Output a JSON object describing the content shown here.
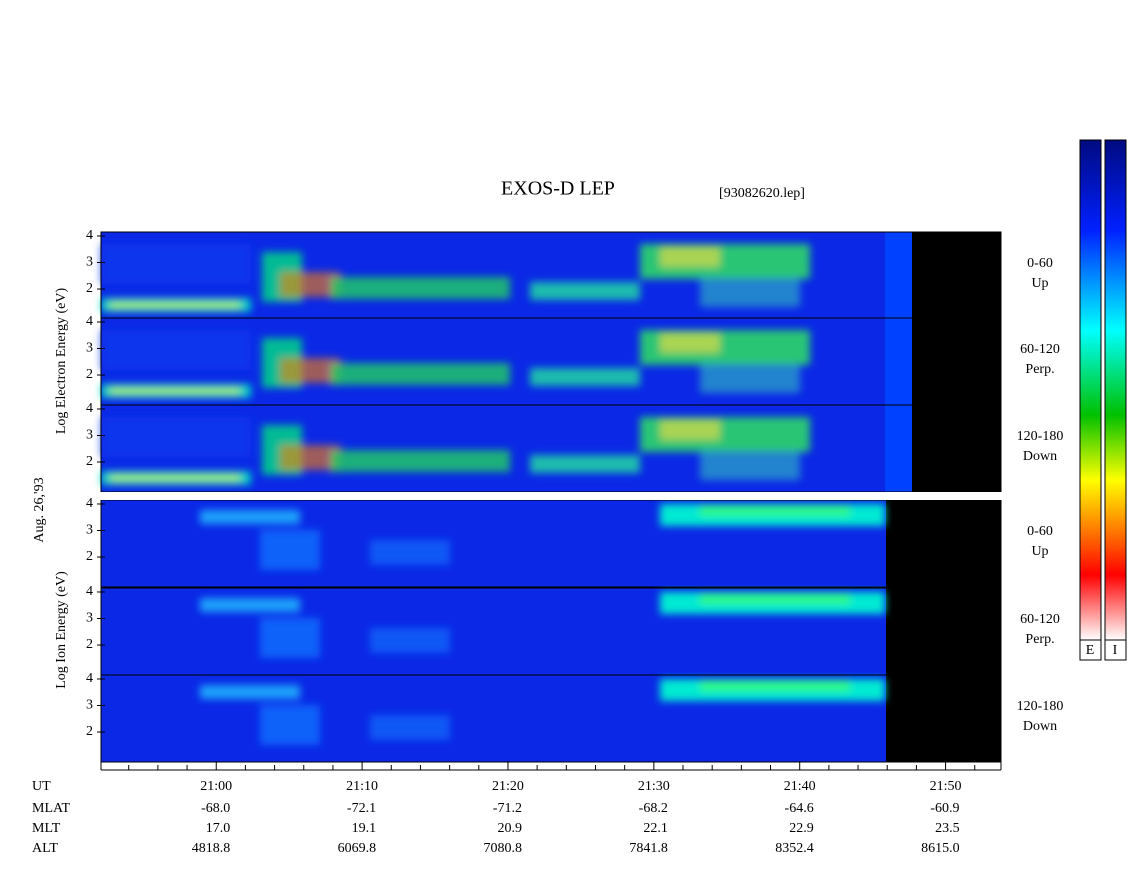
{
  "chart_data": {
    "type": "spectrogram",
    "title": "EXOS-D LEP",
    "subtitle": "[93082620.lep]",
    "date_label": "Aug. 26,'93",
    "group_labels": [
      "Log Electron Energy (eV)",
      "Log Ion Energy (eV)"
    ],
    "panel_labels": [
      [
        "0-60",
        "Up"
      ],
      [
        "60-120",
        "Perp."
      ],
      [
        "120-180",
        "Down"
      ],
      [
        "0-60",
        "Up"
      ],
      [
        "60-120",
        "Perp."
      ],
      [
        "120-180",
        "Down"
      ]
    ],
    "ylim": [
      0.87,
      4.15
    ],
    "yticks": [
      2,
      3,
      4
    ],
    "xlim": [
      1252.1,
      1313.8
    ],
    "xticks": [
      {
        "value": 1260,
        "label": "21:00"
      },
      {
        "value": 1270,
        "label": "21:10"
      },
      {
        "value": 1280,
        "label": "21:20"
      },
      {
        "value": 1290,
        "label": "21:30"
      },
      {
        "value": 1300,
        "label": "21:40"
      },
      {
        "value": 1310,
        "label": "21:50"
      }
    ],
    "xminor": [
      1254,
      1256,
      1258,
      1262,
      1264,
      1266,
      1268,
      1272,
      1274,
      1276,
      1278,
      1282,
      1284,
      1286,
      1288,
      1292,
      1294,
      1296,
      1298,
      1302,
      1304,
      1306,
      1308,
      1312
    ],
    "x_label": "UT",
    "table": [
      {
        "label": "MLAT",
        "values": [
          "-68.0",
          "-72.1",
          "-71.2",
          "-68.2",
          "-64.6",
          "-60.9"
        ]
      },
      {
        "label": "MLT",
        "values": [
          "17.0",
          "19.1",
          "20.9",
          "22.1",
          "22.9",
          "23.5"
        ]
      },
      {
        "label": "ALT",
        "values": [
          "4818.8",
          "6069.8",
          "7080.8",
          "7841.8",
          "8352.4",
          "8615.0"
        ]
      }
    ],
    "colorbar_labels": [
      "E",
      "I"
    ]
  }
}
